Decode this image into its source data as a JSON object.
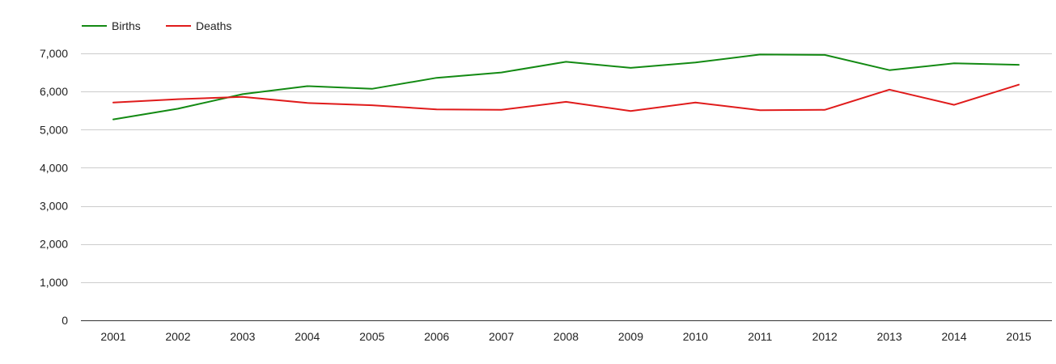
{
  "chart_data": {
    "type": "line",
    "title": "",
    "xlabel": "",
    "ylabel": "",
    "x": [
      "2001",
      "2002",
      "2003",
      "2004",
      "2005",
      "2006",
      "2007",
      "2008",
      "2009",
      "2010",
      "2011",
      "2012",
      "2013",
      "2014",
      "2015"
    ],
    "series": [
      {
        "name": "Births",
        "color": "#138a13",
        "values": [
          5270,
          5550,
          5930,
          6140,
          6070,
          6360,
          6500,
          6780,
          6620,
          6760,
          6970,
          6960,
          6560,
          6740,
          6700
        ]
      },
      {
        "name": "Deaths",
        "color": "#e01b1b",
        "values": [
          5710,
          5800,
          5860,
          5700,
          5640,
          5530,
          5520,
          5730,
          5490,
          5710,
          5510,
          5520,
          6050,
          5650,
          6180
        ]
      }
    ],
    "ylim": [
      0,
      7000
    ],
    "yticks": [
      0,
      1000,
      2000,
      3000,
      4000,
      5000,
      6000,
      7000
    ],
    "ytick_labels": [
      "0",
      "1,000",
      "2,000",
      "3,000",
      "4,000",
      "5,000",
      "6,000",
      "7,000"
    ],
    "grid": true,
    "legend_position": "top-left"
  }
}
